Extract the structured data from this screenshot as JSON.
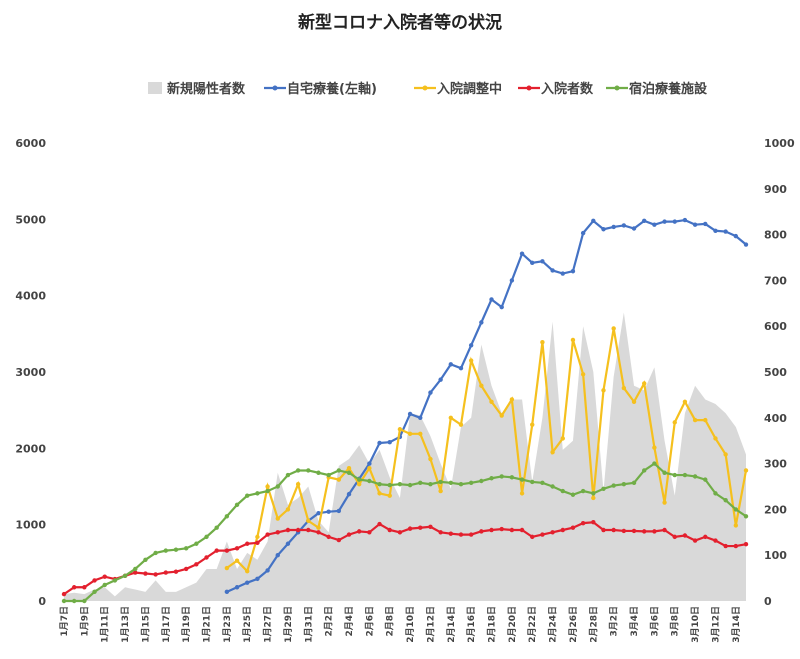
{
  "chart_data": {
    "type": "line",
    "title": "新型コロナ入院者等の状況",
    "categories": [
      "1月7日",
      null,
      "1月9日",
      null,
      "1月11日",
      null,
      "1月13日",
      null,
      "1月15日",
      null,
      "1月17日",
      null,
      "1月19日",
      null,
      "1月21日",
      null,
      "1月23日",
      null,
      "1月25日",
      null,
      "1月27日",
      null,
      "1月29日",
      null,
      "1月31日",
      null,
      "2月2日",
      null,
      "2月4日",
      null,
      "2月6日",
      null,
      "2月8日",
      null,
      "2月10日",
      null,
      "2月12日",
      null,
      "2月14日",
      null,
      "2月16日",
      null,
      "2月18日",
      null,
      "2月20日",
      null,
      "2月22日",
      null,
      "2月24日",
      null,
      "2月26日",
      null,
      "2月28日",
      null,
      "3月2日",
      null,
      "3月4日",
      null,
      "3月6日",
      null,
      "3月8日",
      null,
      "3月10日",
      null,
      "3月12日",
      null,
      "3月14日",
      null
    ],
    "series": [
      {
        "name": "新規陽性者数",
        "type": "area",
        "axis": "y2",
        "color": "#d9d9d9",
        "values": [
          15,
          18,
          15,
          25,
          30,
          10,
          30,
          25,
          20,
          45,
          20,
          20,
          30,
          40,
          70,
          70,
          130,
          70,
          105,
          90,
          130,
          280,
          210,
          225,
          250,
          175,
          150,
          295,
          310,
          340,
          300,
          330,
          270,
          225,
          410,
          405,
          360,
          300,
          245,
          380,
          400,
          560,
          470,
          410,
          440,
          440,
          260,
          400,
          610,
          330,
          350,
          600,
          500,
          240,
          490,
          630,
          470,
          460,
          510,
          350,
          230,
          410,
          470,
          440,
          430,
          410,
          380,
          320
        ]
      },
      {
        "name": "自宅療養(左軸)",
        "type": "line",
        "axis": "y",
        "color": "#4472c4",
        "values": [
          null,
          null,
          null,
          null,
          null,
          null,
          null,
          null,
          null,
          null,
          null,
          null,
          null,
          null,
          null,
          null,
          120,
          180,
          240,
          290,
          400,
          600,
          750,
          900,
          1050,
          1150,
          1170,
          1180,
          1400,
          1600,
          1800,
          2070,
          2080,
          2150,
          2450,
          2400,
          2730,
          2900,
          3100,
          3050,
          3350,
          3650,
          3950,
          3850,
          4200,
          4550,
          4430,
          4450,
          4330,
          4290,
          4320,
          4820,
          4980,
          4870,
          4900,
          4920,
          4880,
          4980,
          4930,
          4970,
          4970,
          4990,
          4930,
          4940,
          4850,
          4840,
          4780,
          4670
        ]
      },
      {
        "name": "入院調整中",
        "type": "line",
        "axis": "y2",
        "color": "#f5c01e",
        "values": [
          null,
          null,
          null,
          null,
          null,
          null,
          null,
          null,
          null,
          null,
          null,
          null,
          null,
          null,
          null,
          null,
          72,
          88,
          65,
          140,
          250,
          180,
          200,
          255,
          175,
          160,
          270,
          265,
          290,
          255,
          290,
          235,
          230,
          375,
          365,
          365,
          310,
          240,
          400,
          385,
          525,
          470,
          435,
          405,
          440,
          235,
          385,
          565,
          325,
          355,
          570,
          495,
          225,
          460,
          595,
          465,
          435,
          475,
          335,
          215,
          390,
          435,
          395,
          395,
          355,
          320,
          165,
          285
        ]
      },
      {
        "name": "入院者数",
        "type": "line",
        "axis": "y2",
        "color": "#e3202e",
        "values": [
          15,
          30,
          30,
          45,
          53,
          48,
          55,
          62,
          60,
          58,
          62,
          64,
          70,
          80,
          95,
          110,
          110,
          115,
          125,
          127,
          145,
          150,
          155,
          155,
          155,
          150,
          140,
          133,
          145,
          152,
          150,
          168,
          155,
          150,
          158,
          160,
          162,
          150,
          147,
          145,
          145,
          152,
          155,
          157,
          155,
          155,
          140,
          145,
          150,
          155,
          160,
          170,
          172,
          155,
          155,
          153,
          153,
          152,
          152,
          155,
          140,
          143,
          132,
          140,
          132,
          120,
          120,
          124
        ]
      },
      {
        "name": "宿泊療養施設",
        "type": "line",
        "axis": "y2",
        "color": "#70ad47",
        "values": [
          0,
          0,
          0,
          20,
          35,
          45,
          55,
          70,
          90,
          105,
          110,
          112,
          115,
          125,
          140,
          160,
          185,
          210,
          230,
          235,
          240,
          250,
          275,
          285,
          285,
          280,
          275,
          285,
          280,
          265,
          262,
          255,
          253,
          255,
          253,
          258,
          255,
          260,
          258,
          255,
          258,
          262,
          268,
          272,
          270,
          265,
          260,
          258,
          250,
          240,
          232,
          240,
          235,
          245,
          252,
          255,
          258,
          285,
          300,
          280,
          275,
          275,
          272,
          265,
          235,
          220,
          200,
          185
        ]
      }
    ],
    "ylim": [
      0,
      6000
    ],
    "yticks": [
      0,
      1000,
      2000,
      3000,
      4000,
      5000,
      6000
    ],
    "y2lim": [
      0,
      1000
    ],
    "y2ticks": [
      0,
      100,
      200,
      300,
      400,
      500,
      600,
      700,
      800,
      900,
      1000
    ]
  }
}
